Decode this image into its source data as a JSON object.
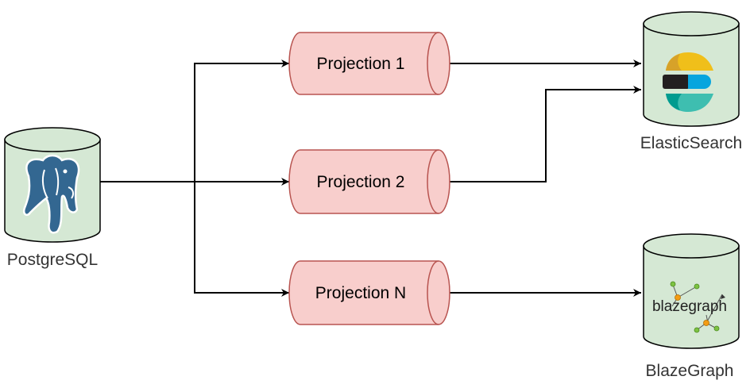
{
  "sources": [
    {
      "id": "postgres",
      "label": "PostgreSQL",
      "icon": "postgresql-elephant-icon"
    }
  ],
  "projections": [
    {
      "id": "p1",
      "label": "Projection 1"
    },
    {
      "id": "p2",
      "label": "Projection 2"
    },
    {
      "id": "pn",
      "label": "Projection N"
    }
  ],
  "targets": [
    {
      "id": "elastic",
      "label": "ElasticSearch",
      "icon": "elasticsearch-logo-icon"
    },
    {
      "id": "blaze",
      "label": "BlazeGraph",
      "icon": "blazegraph-logo-icon",
      "logo_text": "blazegraph"
    }
  ],
  "edges": [
    {
      "from": "postgres",
      "to": "p1"
    },
    {
      "from": "postgres",
      "to": "p2"
    },
    {
      "from": "postgres",
      "to": "pn"
    },
    {
      "from": "p1",
      "to": "elastic"
    },
    {
      "from": "p2",
      "to": "elastic"
    },
    {
      "from": "pn",
      "to": "blaze"
    }
  ],
  "colors": {
    "db_fill": "#d5e8d4",
    "db_stroke": "#000000",
    "queue_fill": "#f8cecc",
    "queue_stroke": "#b85450",
    "edge": "#000000"
  }
}
